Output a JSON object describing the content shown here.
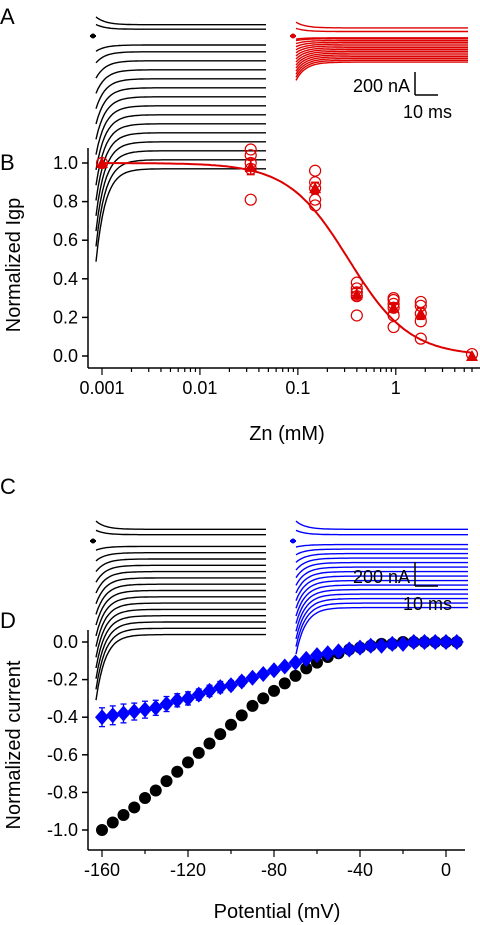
{
  "panels": {
    "A": "A",
    "B": "B",
    "C": "C",
    "D": "D"
  },
  "scalebars": {
    "current_label": "200 nA",
    "time_label": "10 ms"
  },
  "colors": {
    "control": "#000000",
    "zinc": "#dd0000",
    "blue": "#0000ff"
  },
  "chart_data": [
    {
      "panel": "A",
      "type": "line",
      "series": [
        {
          "name": "",
          "color": "#000000",
          "values": [
            -20,
            -35,
            -55,
            -75,
            -95,
            -115,
            -135,
            -155,
            -175,
            -195,
            -215,
            -235,
            -255,
            -275,
            -295,
            15,
            25
          ]
        },
        {
          "name": "",
          "color": "#dd0000",
          "values": [
            -4,
            -6,
            -10,
            -14,
            -18,
            -22,
            -26,
            -30,
            -34,
            -38,
            -42,
            -46,
            -50,
            -54,
            -58,
            10,
            18
          ]
        }
      ]
    },
    {
      "panel": "B",
      "type": "scatter",
      "xlabel": "Zn (mM)",
      "ylabel": "Normalized Igp",
      "xscale": "log",
      "xlim": [
        0.001,
        6
      ],
      "ylim": [
        -0.05,
        1.05
      ],
      "xticks": [
        "0.001",
        "0.01",
        "0.1",
        "1"
      ],
      "yticks": [
        "0.0",
        "0.2",
        "0.4",
        "0.6",
        "0.8",
        "1.0"
      ],
      "fit": {
        "ic50_mM": 0.33,
        "hill": 1.4,
        "color": "#dd0000"
      },
      "individual": [
        {
          "x": 0.001,
          "y": 1.0
        },
        {
          "x": 0.033,
          "y": 1.07
        },
        {
          "x": 0.033,
          "y": 1.04
        },
        {
          "x": 0.033,
          "y": 1.0
        },
        {
          "x": 0.033,
          "y": 0.97
        },
        {
          "x": 0.033,
          "y": 0.81
        },
        {
          "x": 0.15,
          "y": 0.96
        },
        {
          "x": 0.15,
          "y": 0.9
        },
        {
          "x": 0.15,
          "y": 0.87
        },
        {
          "x": 0.15,
          "y": 0.81
        },
        {
          "x": 0.15,
          "y": 0.78
        },
        {
          "x": 0.4,
          "y": 0.38
        },
        {
          "x": 0.4,
          "y": 0.35
        },
        {
          "x": 0.4,
          "y": 0.33
        },
        {
          "x": 0.4,
          "y": 0.31
        },
        {
          "x": 0.4,
          "y": 0.21
        },
        {
          "x": 0.95,
          "y": 0.3
        },
        {
          "x": 0.95,
          "y": 0.29
        },
        {
          "x": 0.95,
          "y": 0.27
        },
        {
          "x": 0.95,
          "y": 0.25
        },
        {
          "x": 0.95,
          "y": 0.21
        },
        {
          "x": 0.95,
          "y": 0.15
        },
        {
          "x": 1.8,
          "y": 0.28
        },
        {
          "x": 1.8,
          "y": 0.26
        },
        {
          "x": 1.8,
          "y": 0.22
        },
        {
          "x": 1.8,
          "y": 0.18
        },
        {
          "x": 1.8,
          "y": 0.09
        },
        {
          "x": 6.0,
          "y": 0.01
        }
      ],
      "mean": [
        {
          "x": 0.001,
          "y": 1.0,
          "err": 0.0
        },
        {
          "x": 0.033,
          "y": 0.98,
          "err": 0.04
        },
        {
          "x": 0.15,
          "y": 0.87,
          "err": 0.03
        },
        {
          "x": 0.4,
          "y": 0.32,
          "err": 0.03
        },
        {
          "x": 0.95,
          "y": 0.25,
          "err": 0.02
        },
        {
          "x": 1.8,
          "y": 0.22,
          "err": 0.03
        },
        {
          "x": 6.0,
          "y": 0.0,
          "err": 0.0
        }
      ]
    },
    {
      "panel": "C",
      "type": "line",
      "series": [
        {
          "name": "",
          "color": "#000000",
          "values": [
            -12,
            -26,
            -40,
            -54,
            -68,
            -82,
            -96,
            -110,
            -124,
            -138,
            -152,
            -166,
            -180,
            -194,
            -208,
            14,
            26
          ]
        },
        {
          "name": "",
          "color": "#0000ff",
          "values": [
            -8,
            -18,
            -28,
            -38,
            -48,
            -58,
            -68,
            -78,
            -88,
            -98,
            -108,
            -118,
            -128,
            -138,
            -148,
            14,
            26
          ]
        }
      ]
    },
    {
      "panel": "D",
      "type": "scatter",
      "xlabel": "Potential (mV)",
      "ylabel": "Normalized current",
      "xlim": [
        -164,
        6
      ],
      "ylim": [
        -1.05,
        0.05
      ],
      "xticks": [
        "-160",
        "-120",
        "-80",
        "-40",
        "0"
      ],
      "yticks": [
        "-1.0",
        "-0.8",
        "-0.6",
        "-0.4",
        "-0.2",
        "0.0"
      ],
      "series": [
        {
          "name": "",
          "color": "#000000",
          "marker": "circle",
          "x": [
            -160,
            -155,
            -150,
            -145,
            -140,
            -135,
            -130,
            -125,
            -120,
            -115,
            -110,
            -105,
            -100,
            -95,
            -90,
            -85,
            -80,
            -75,
            -70,
            -65,
            -60,
            -55,
            -50,
            -45,
            -40,
            -35,
            -30,
            -25,
            -20,
            -15,
            -10,
            -5,
            0,
            5
          ],
          "y": [
            -1.0,
            -0.96,
            -0.92,
            -0.88,
            -0.83,
            -0.79,
            -0.74,
            -0.69,
            -0.64,
            -0.59,
            -0.54,
            -0.49,
            -0.44,
            -0.39,
            -0.34,
            -0.3,
            -0.26,
            -0.22,
            -0.18,
            -0.14,
            -0.11,
            -0.08,
            -0.06,
            -0.04,
            -0.03,
            -0.02,
            -0.01,
            -0.01,
            0.0,
            0.0,
            0.0,
            0.0,
            0.0,
            0.0
          ]
        },
        {
          "name": "",
          "color": "#0000ff",
          "marker": "diamond",
          "x": [
            -160,
            -155,
            -150,
            -145,
            -140,
            -135,
            -130,
            -125,
            -120,
            -115,
            -110,
            -105,
            -100,
            -95,
            -90,
            -85,
            -80,
            -75,
            -70,
            -65,
            -60,
            -55,
            -50,
            -45,
            -40,
            -35,
            -30,
            -25,
            -20,
            -15,
            -10,
            -5,
            0,
            5
          ],
          "y": [
            -0.4,
            -0.39,
            -0.38,
            -0.37,
            -0.36,
            -0.35,
            -0.33,
            -0.31,
            -0.3,
            -0.28,
            -0.26,
            -0.24,
            -0.23,
            -0.21,
            -0.19,
            -0.17,
            -0.15,
            -0.13,
            -0.11,
            -0.09,
            -0.07,
            -0.06,
            -0.05,
            -0.04,
            -0.03,
            -0.02,
            -0.02,
            -0.01,
            -0.01,
            0.0,
            0.0,
            0.0,
            0.0,
            0.0
          ],
          "err": [
            0.05,
            0.05,
            0.05,
            0.045,
            0.045,
            0.04,
            0.04,
            0.035,
            0.035,
            0.03,
            0.03,
            0.03,
            0.025,
            0.025,
            0.02,
            0.02,
            0.02,
            0.015,
            0.015,
            0.01,
            0.01,
            0.01,
            0.01,
            0.01,
            0.01,
            0.005,
            0.005,
            0.005,
            0.005,
            0.005,
            0.005,
            0.005,
            0.005,
            0.005
          ]
        }
      ]
    }
  ]
}
